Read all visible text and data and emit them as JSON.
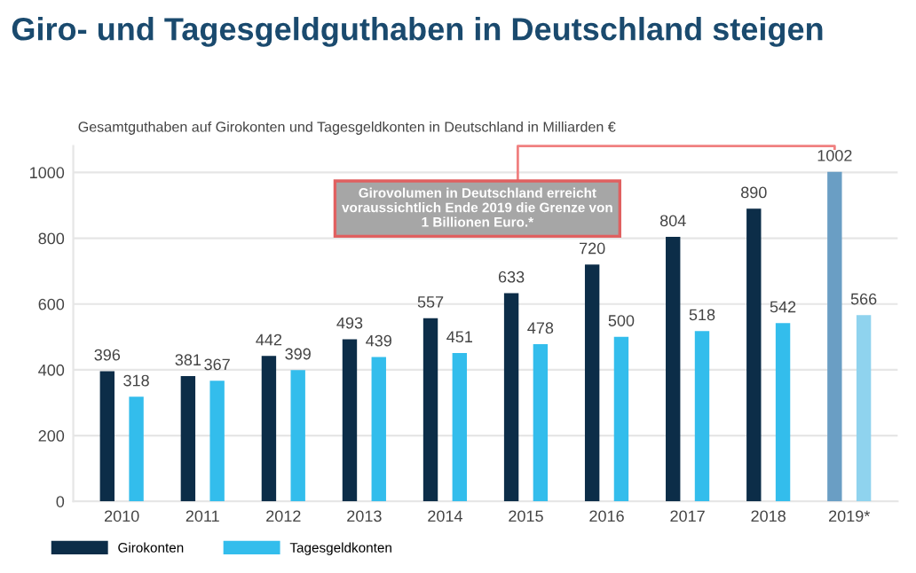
{
  "chart_data": {
    "type": "bar",
    "title": "Giro- und Tagesgeldguthaben in Deutschland steigen",
    "subtitle": "Gesamtguthaben auf Girokonten und Tagesgeldkonten in Deutschland in Milliarden €",
    "categories": [
      "2010",
      "2011",
      "2012",
      "2013",
      "2014",
      "2015",
      "2016",
      "2017",
      "2018",
      "2019*"
    ],
    "series": [
      {
        "name": "Girokonten",
        "color": "#0c2d48",
        "colors": [
          "#0c2d48",
          "#0c2d48",
          "#0c2d48",
          "#0c2d48",
          "#0c2d48",
          "#0c2d48",
          "#0c2d48",
          "#0c2d48",
          "#0c2d48",
          "#6a9ec4"
        ],
        "values": [
          396,
          381,
          442,
          493,
          557,
          633,
          720,
          804,
          890,
          1002
        ]
      },
      {
        "name": "Tagesgeldkonten",
        "color": "#33bdec",
        "colors": [
          "#33bdec",
          "#33bdec",
          "#33bdec",
          "#33bdec",
          "#33bdec",
          "#33bdec",
          "#33bdec",
          "#33bdec",
          "#33bdec",
          "#8fd3ee"
        ],
        "values": [
          318,
          367,
          399,
          439,
          451,
          478,
          500,
          518,
          542,
          566
        ]
      }
    ],
    "annotations": [
      "Girovolumen in Deutschland erreicht\nvoraussichtlich Ende 2019 die Grenze von\n1 Billionen Euro.*"
    ],
    "ylim": [
      0,
      1080
    ],
    "yticks": [
      0,
      200,
      400,
      600,
      800,
      1000
    ],
    "grid": "y",
    "data_labels": true,
    "legend": "bottom left"
  }
}
